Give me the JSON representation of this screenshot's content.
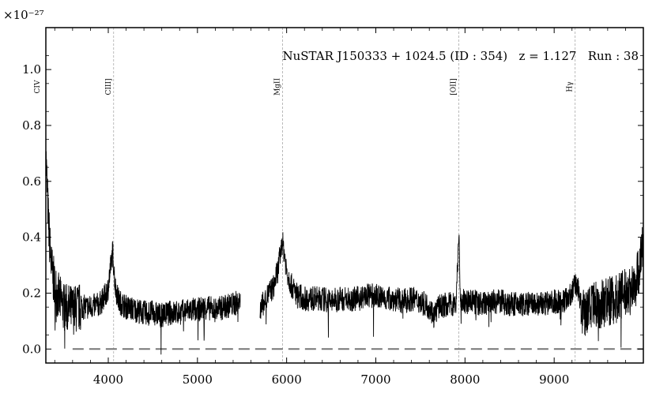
{
  "chart_data": {
    "type": "line",
    "title": "NuSTAR J150333 + 1024.5 (ID : 354)   z = 1.127   Run : 38",
    "exponent_label": "×10⁻²⁷",
    "xlabel": "",
    "ylabel": "",
    "xlim": [
      3300,
      10000
    ],
    "ylim": [
      -0.05,
      1.15
    ],
    "x_ticks": [
      4000,
      5000,
      6000,
      7000,
      8000,
      9000
    ],
    "y_ticks": [
      "0.0",
      "0.2",
      "0.4",
      "0.6",
      "0.8",
      "1.0"
    ],
    "y_tick_values": [
      0.0,
      0.2,
      0.4,
      0.6,
      0.8,
      1.0
    ],
    "zero_line": 0.0,
    "emission_lines": [
      {
        "label": "CIV",
        "wavelength": 3295
      },
      {
        "label": "CIII]",
        "wavelength": 4060
      },
      {
        "label": "MgII",
        "wavelength": 5955
      },
      {
        "label": "[OII]",
        "wavelength": 7930
      },
      {
        "label": "Hγ",
        "wavelength": 9235
      }
    ],
    "series": [
      {
        "color": "#000000",
        "x": [
          3300,
          3330,
          3360,
          3400,
          3450,
          3500,
          3600,
          3700,
          3800,
          3900,
          3950,
          4000,
          4030,
          4050,
          4060,
          4080,
          4120,
          4200,
          4300,
          4400,
          4500,
          4600,
          4700,
          4800,
          4900,
          5000,
          5100,
          5200,
          5300,
          5400,
          5480,
          5520,
          5600,
          5700,
          5750,
          5800,
          5850,
          5900,
          5930,
          5955,
          5980,
          6000,
          6050,
          6100,
          6200,
          6300,
          6400,
          6500,
          6600,
          6700,
          6800,
          6900,
          7000,
          7100,
          7200,
          7300,
          7400,
          7500,
          7600,
          7650,
          7700,
          7800,
          7900,
          7930,
          7950,
          8000,
          8100,
          8200,
          8300,
          8400,
          8500,
          8600,
          8700,
          8800,
          8900,
          9000,
          9100,
          9200,
          9235,
          9280,
          9320,
          9400,
          9500,
          9600,
          9700,
          9800,
          9900,
          9960,
          10000
        ],
        "y": [
          0.7,
          0.45,
          0.3,
          0.22,
          0.18,
          0.15,
          0.14,
          0.15,
          0.15,
          0.16,
          0.18,
          0.22,
          0.3,
          0.35,
          0.3,
          0.22,
          0.17,
          0.15,
          0.14,
          0.13,
          0.13,
          0.12,
          0.13,
          0.13,
          0.14,
          0.14,
          0.15,
          0.14,
          0.15,
          0.16,
          0.17,
          null,
          null,
          0.14,
          0.17,
          0.2,
          0.22,
          0.28,
          0.34,
          0.38,
          0.33,
          0.28,
          0.23,
          0.2,
          0.18,
          0.18,
          0.18,
          0.17,
          0.18,
          0.18,
          0.18,
          0.19,
          0.19,
          0.18,
          0.18,
          0.17,
          0.18,
          0.17,
          0.15,
          0.12,
          0.15,
          0.16,
          0.16,
          0.42,
          0.17,
          0.17,
          0.17,
          0.16,
          0.17,
          0.17,
          0.16,
          0.16,
          0.16,
          0.16,
          0.16,
          0.17,
          0.17,
          0.2,
          0.24,
          0.2,
          0.12,
          0.14,
          0.16,
          0.17,
          0.18,
          0.2,
          0.22,
          0.3,
          0.38
        ]
      }
    ],
    "grid": false,
    "legend": "none"
  }
}
